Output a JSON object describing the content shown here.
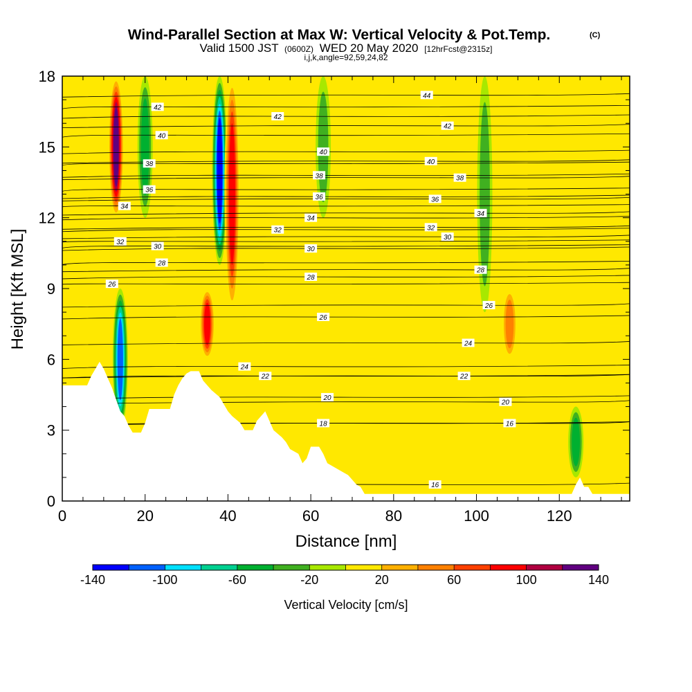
{
  "title": {
    "main": "Wind-Parallel Section at Max W: Vertical Velocity & Pot.Temp.",
    "copyright": "(C)",
    "valid_prefix": "Valid 1500 JST",
    "valid_utc": "(0600Z)",
    "valid_date": "WED 20 May 2020",
    "forecast": "[12hrFcst@2315z]",
    "ijk": "i,j,k,angle=92,59,24,82"
  },
  "chart_data": {
    "type": "heatmap",
    "xlabel": "Distance [nm]",
    "ylabel": "Height [Kft MSL]",
    "xlim": [
      0,
      137
    ],
    "ylim": [
      0,
      18
    ],
    "x_ticks": [
      "0",
      "20",
      "40",
      "60",
      "80",
      "100",
      "120"
    ],
    "y_ticks": [
      "0",
      "3",
      "6",
      "9",
      "12",
      "15",
      "18"
    ],
    "colorbar": {
      "title": "Vertical Velocity [cm/s]",
      "tick_labels": [
        "-140",
        "-100",
        "-60",
        "-20",
        "20",
        "60",
        "100",
        "140"
      ],
      "levels": [
        -140,
        -120,
        -100,
        -80,
        -60,
        -40,
        -20,
        0,
        20,
        40,
        60,
        80,
        100,
        120,
        140
      ],
      "colors": [
        "#0000ff",
        "#0060ff",
        "#00e0ff",
        "#00d090",
        "#00b030",
        "#40b020",
        "#a8e800",
        "#ffe800",
        "#ffb000",
        "#ff8000",
        "#ff4000",
        "#ff0000",
        "#b00040",
        "#600080"
      ]
    },
    "background_value_cm_s": 5,
    "updraft_downdraft_features": [
      {
        "x_nm": 13,
        "y_range_kft": [
          12,
          18
        ],
        "max_cm_s": 140
      },
      {
        "x_nm": 14,
        "y_range_kft": [
          3,
          9
        ],
        "min_cm_s": -110
      },
      {
        "x_nm": 20,
        "y_range_kft": [
          12,
          18
        ],
        "min_cm_s": -60
      },
      {
        "x_nm": 35,
        "y_range_kft": [
          6,
          9
        ],
        "max_cm_s": 100
      },
      {
        "x_nm": 38,
        "y_range_kft": [
          10,
          18
        ],
        "min_cm_s": -140
      },
      {
        "x_nm": 41,
        "y_range_kft": [
          8,
          18
        ],
        "max_cm_s": 90
      },
      {
        "x_nm": 63,
        "y_range_kft": [
          12,
          18
        ],
        "min_cm_s": -40
      },
      {
        "x_nm": 102,
        "y_range_kft": [
          8,
          18
        ],
        "min_cm_s": -40
      },
      {
        "x_nm": 108,
        "y_range_kft": [
          6,
          9
        ],
        "max_cm_s": 50
      },
      {
        "x_nm": 124,
        "y_range_kft": [
          1,
          4
        ],
        "min_cm_s": -60
      }
    ],
    "theta_contour_labels": [
      {
        "value": "44",
        "x_nm": 88,
        "y_kft": 17.2
      },
      {
        "value": "42",
        "x_nm": 23,
        "y_kft": 16.7
      },
      {
        "value": "42",
        "x_nm": 52,
        "y_kft": 16.3
      },
      {
        "value": "42",
        "x_nm": 93,
        "y_kft": 15.9
      },
      {
        "value": "40",
        "x_nm": 24,
        "y_kft": 15.5
      },
      {
        "value": "40",
        "x_nm": 63,
        "y_kft": 14.8
      },
      {
        "value": "40",
        "x_nm": 89,
        "y_kft": 14.4
      },
      {
        "value": "38",
        "x_nm": 21,
        "y_kft": 14.3
      },
      {
        "value": "38",
        "x_nm": 62,
        "y_kft": 13.8
      },
      {
        "value": "38",
        "x_nm": 96,
        "y_kft": 13.7
      },
      {
        "value": "36",
        "x_nm": 21,
        "y_kft": 13.2
      },
      {
        "value": "36",
        "x_nm": 62,
        "y_kft": 12.9
      },
      {
        "value": "36",
        "x_nm": 90,
        "y_kft": 12.8
      },
      {
        "value": "34",
        "x_nm": 15,
        "y_kft": 12.5
      },
      {
        "value": "34",
        "x_nm": 60,
        "y_kft": 12.0
      },
      {
        "value": "34",
        "x_nm": 101,
        "y_kft": 12.2
      },
      {
        "value": "32",
        "x_nm": 14,
        "y_kft": 11.0
      },
      {
        "value": "32",
        "x_nm": 52,
        "y_kft": 11.5
      },
      {
        "value": "32",
        "x_nm": 89,
        "y_kft": 11.6
      },
      {
        "value": "30",
        "x_nm": 23,
        "y_kft": 10.8
      },
      {
        "value": "30",
        "x_nm": 60,
        "y_kft": 10.7
      },
      {
        "value": "30",
        "x_nm": 93,
        "y_kft": 11.2
      },
      {
        "value": "28",
        "x_nm": 24,
        "y_kft": 10.1
      },
      {
        "value": "28",
        "x_nm": 60,
        "y_kft": 9.5
      },
      {
        "value": "28",
        "x_nm": 101,
        "y_kft": 9.8
      },
      {
        "value": "26",
        "x_nm": 12,
        "y_kft": 9.2
      },
      {
        "value": "26",
        "x_nm": 63,
        "y_kft": 7.8
      },
      {
        "value": "26",
        "x_nm": 103,
        "y_kft": 8.3
      },
      {
        "value": "24",
        "x_nm": 44,
        "y_kft": 5.7
      },
      {
        "value": "24",
        "x_nm": 98,
        "y_kft": 6.7
      },
      {
        "value": "22",
        "x_nm": 49,
        "y_kft": 5.3
      },
      {
        "value": "22",
        "x_nm": 97,
        "y_kft": 5.3
      },
      {
        "value": "20",
        "x_nm": 64,
        "y_kft": 4.4
      },
      {
        "value": "20",
        "x_nm": 107,
        "y_kft": 4.2
      },
      {
        "value": "18",
        "x_nm": 63,
        "y_kft": 3.3
      },
      {
        "value": "16",
        "x_nm": 108,
        "y_kft": 3.3
      },
      {
        "value": "16",
        "x_nm": 90,
        "y_kft": 0.7
      }
    ],
    "terrain_kft": [
      [
        0,
        4.9
      ],
      [
        6,
        4.9
      ],
      [
        7,
        5.3
      ],
      [
        9,
        5.9
      ],
      [
        10,
        5.6
      ],
      [
        11,
        5.2
      ],
      [
        12,
        4.8
      ],
      [
        13,
        4.3
      ],
      [
        14,
        3.8
      ],
      [
        15,
        3.6
      ],
      [
        16,
        3.2
      ],
      [
        17,
        2.9
      ],
      [
        19,
        2.9
      ],
      [
        20,
        3.3
      ],
      [
        21,
        3.9
      ],
      [
        26,
        3.9
      ],
      [
        27,
        4.5
      ],
      [
        28,
        4.9
      ],
      [
        29,
        5.2
      ],
      [
        30,
        5.4
      ],
      [
        31,
        5.5
      ],
      [
        33,
        5.5
      ],
      [
        34,
        5.1
      ],
      [
        36,
        4.7
      ],
      [
        38,
        4.4
      ],
      [
        40,
        3.8
      ],
      [
        41,
        3.6
      ],
      [
        43,
        3.3
      ],
      [
        44,
        3.0
      ],
      [
        46,
        3.0
      ],
      [
        47,
        3.4
      ],
      [
        48,
        3.6
      ],
      [
        49,
        3.8
      ],
      [
        50,
        3.4
      ],
      [
        51,
        3.0
      ],
      [
        53,
        2.7
      ],
      [
        54,
        2.5
      ],
      [
        55,
        2.2
      ],
      [
        57,
        2.0
      ],
      [
        58,
        1.6
      ],
      [
        59,
        1.8
      ],
      [
        60,
        2.3
      ],
      [
        62,
        2.3
      ],
      [
        63,
        2.0
      ],
      [
        64,
        1.6
      ],
      [
        66,
        1.4
      ],
      [
        68,
        1.2
      ],
      [
        69,
        1.1
      ],
      [
        70,
        0.9
      ],
      [
        71,
        0.7
      ],
      [
        72,
        0.6
      ],
      [
        73,
        0.3
      ],
      [
        123,
        0.3
      ],
      [
        124,
        0.7
      ],
      [
        125,
        1.0
      ],
      [
        126,
        0.6
      ],
      [
        127,
        0.6
      ],
      [
        128,
        0.3
      ],
      [
        137,
        0.3
      ]
    ]
  }
}
